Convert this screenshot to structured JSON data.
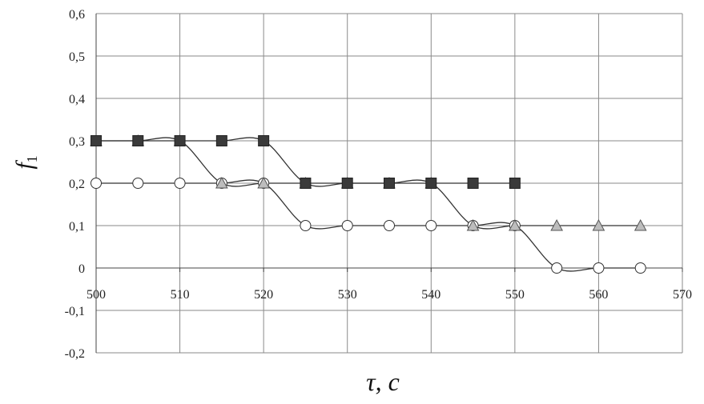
{
  "chart_data": {
    "type": "line",
    "xlabel": "τ, c",
    "ylabel": "f",
    "ylabel_subscript": "1",
    "xlim": [
      500,
      570
    ],
    "ylim": [
      -0.2,
      0.6
    ],
    "x_ticks": [
      500,
      510,
      520,
      530,
      540,
      550,
      560,
      570
    ],
    "x_tick_labels": [
      "500",
      "510",
      "520",
      "530",
      "540",
      "550",
      "560",
      "570"
    ],
    "y_ticks": [
      -0.2,
      -0.1,
      0,
      0.1,
      0.2,
      0.3,
      0.4,
      0.5,
      0.6
    ],
    "y_tick_labels": [
      "-0,2",
      "-0,1",
      "0",
      "0,1",
      "0,2",
      "0,3",
      "0,4",
      "0,5",
      "0,6"
    ],
    "grid": true,
    "series": [
      {
        "marker": "square",
        "color": "#3a3a3a",
        "x": [
          500,
          505,
          510,
          515,
          520,
          525,
          530,
          535,
          540,
          545,
          550
        ],
        "y": [
          0.3,
          0.3,
          0.3,
          0.3,
          0.3,
          0.2,
          0.2,
          0.2,
          0.2,
          0.2,
          0.2
        ]
      },
      {
        "marker": "triangle",
        "color": "#bdbdbd",
        "x": [
          500,
          505,
          510,
          515,
          520,
          525,
          530,
          535,
          540,
          545,
          550,
          555,
          560,
          565
        ],
        "y": [
          0.3,
          0.3,
          0.3,
          0.2,
          0.2,
          0.2,
          0.2,
          0.2,
          0.2,
          0.1,
          0.1,
          0.1,
          0.1,
          0.1
        ]
      },
      {
        "marker": "circle",
        "color": "#ffffff",
        "x": [
          500,
          505,
          510,
          515,
          520,
          525,
          530,
          535,
          540,
          545,
          550,
          555,
          560,
          565
        ],
        "y": [
          0.2,
          0.2,
          0.2,
          0.2,
          0.2,
          0.1,
          0.1,
          0.1,
          0.1,
          0.1,
          0.1,
          0.0,
          0.0,
          0.0
        ]
      }
    ]
  }
}
